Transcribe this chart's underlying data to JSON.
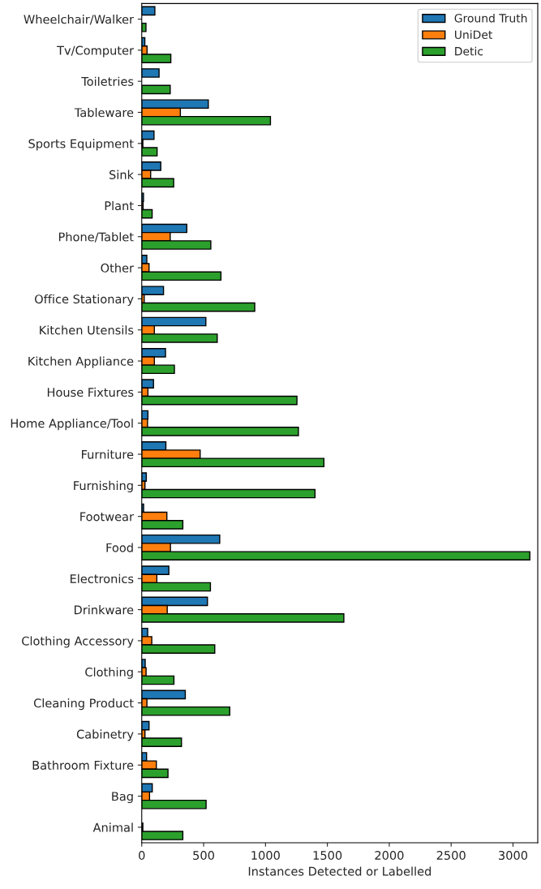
{
  "chart_data": {
    "type": "bar",
    "orientation": "horizontal",
    "xlabel": "Instances Detected or Labelled",
    "categories": [
      "Wheelchair/Walker",
      "Tv/Computer",
      "Toiletries",
      "Tableware",
      "Sports Equipment",
      "Sink",
      "Plant",
      "Phone/Tablet",
      "Other",
      "Office Stationary",
      "Kitchen Utensils",
      "Kitchen Appliance",
      "House Fixtures",
      "Home Appliance/Tool",
      "Furniture",
      "Furnishing",
      "Footwear",
      "Food",
      "Electronics",
      "Drinkware",
      "Clothing Accessory",
      "Clothing",
      "Cleaning Product",
      "Cabinetry",
      "Bathroom Fixture",
      "Bag",
      "Animal"
    ],
    "series": [
      {
        "name": "Ground Truth",
        "color": "#1f77b4",
        "values": [
          106,
          25,
          140,
          538,
          99,
          154,
          14,
          364,
          41,
          176,
          518,
          192,
          95,
          50,
          195,
          37,
          15,
          630,
          219,
          531,
          48,
          28,
          352,
          59,
          39,
          85,
          null
        ]
      },
      {
        "name": "UniDet",
        "color": "#ff7f0e",
        "values": [
          null,
          43,
          null,
          312,
          9,
          72,
          11,
          230,
          59,
          20,
          102,
          102,
          50,
          47,
          472,
          26,
          203,
          232,
          122,
          206,
          81,
          35,
          42,
          26,
          118,
          63,
          9
        ]
      },
      {
        "name": "Detic",
        "color": "#2ca02c",
        "values": [
          34,
          235,
          230,
          1040,
          124,
          258,
          84,
          558,
          640,
          913,
          610,
          264,
          1254,
          1266,
          1472,
          1400,
          332,
          3136,
          555,
          1633,
          590,
          260,
          711,
          321,
          212,
          520,
          332
        ]
      }
    ],
    "xlim": [
      0,
      3200
    ],
    "xticks": [
      0,
      500,
      1000,
      1500,
      2000,
      2500,
      3000
    ],
    "grid": false,
    "legend": "top right"
  }
}
